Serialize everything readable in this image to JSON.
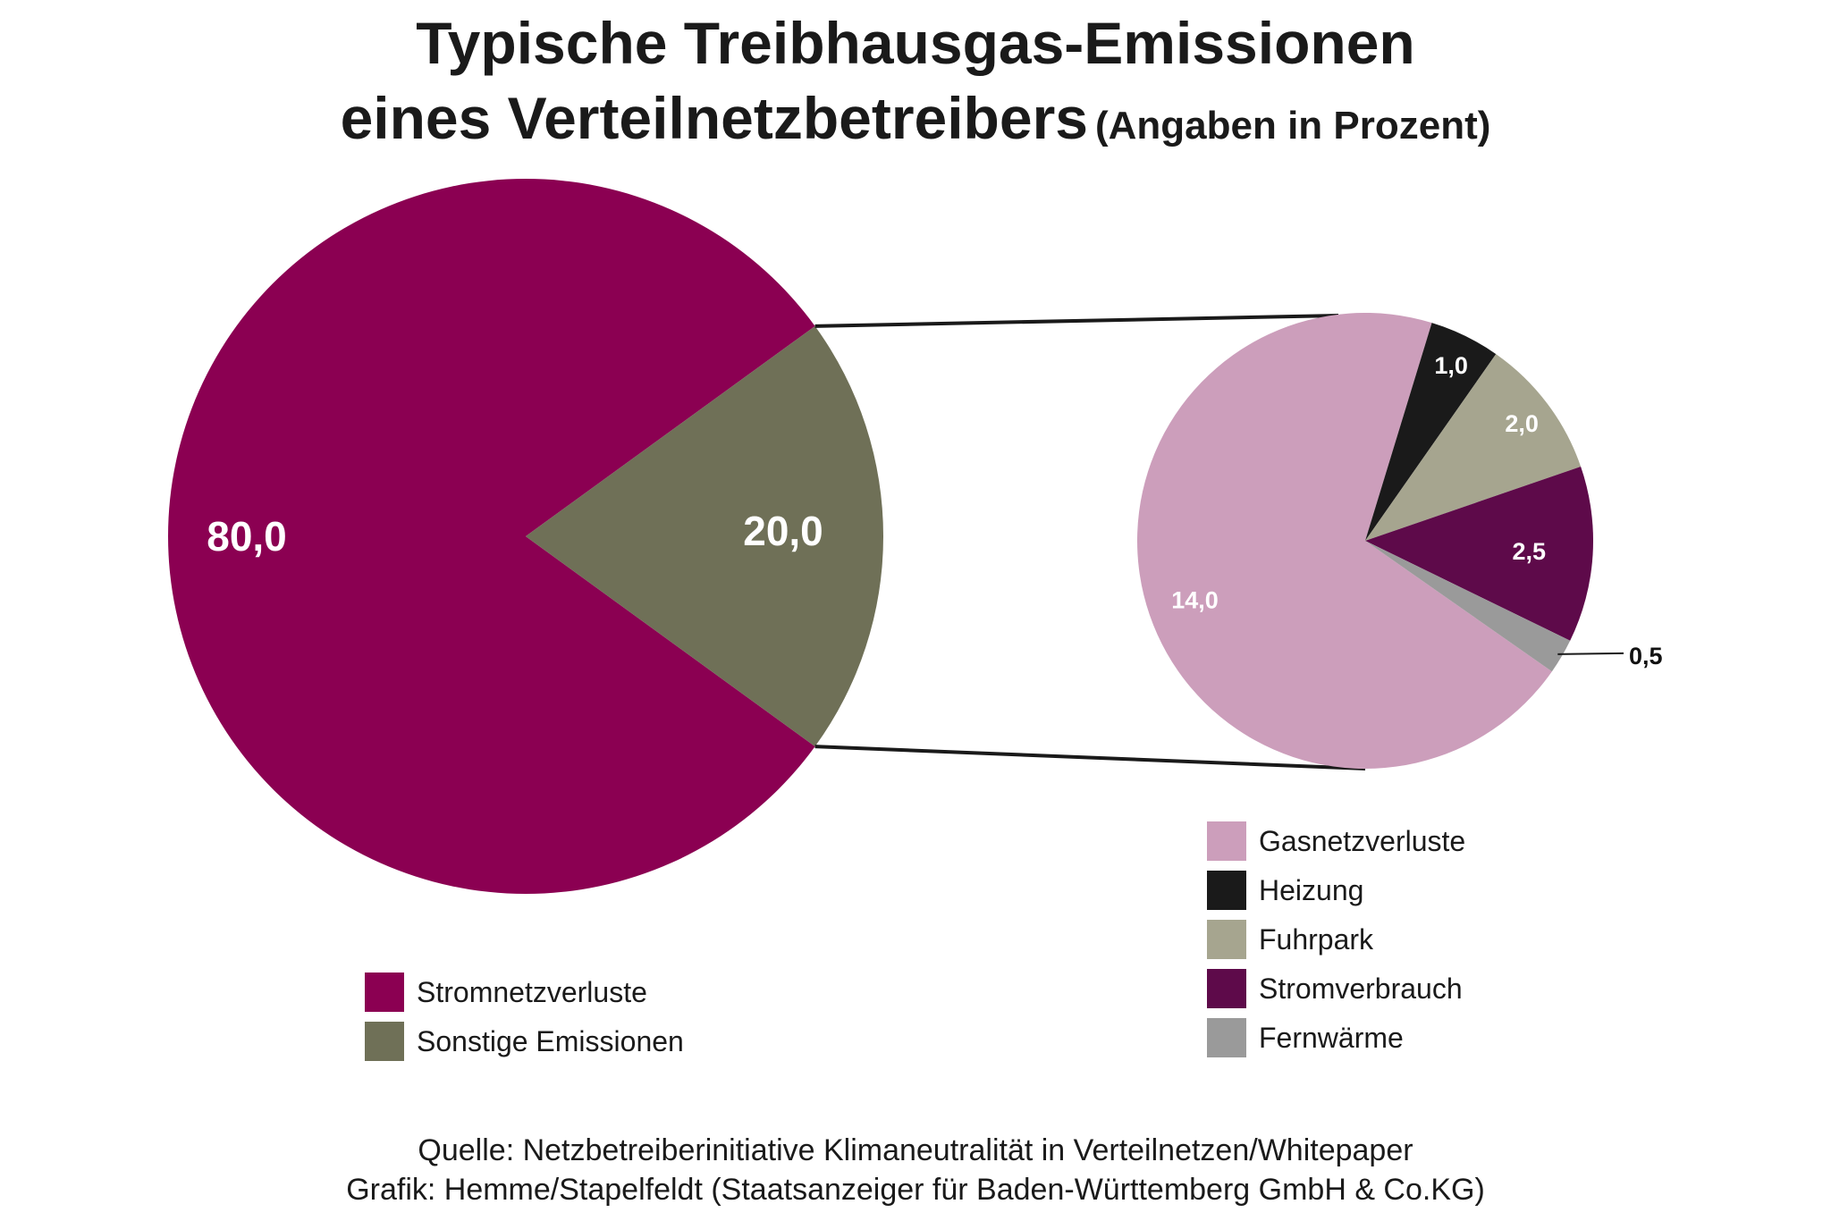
{
  "title_line1": "Typische Treibhausgas-Emissionen",
  "title_line2": "eines Verteilnetzbetreibers",
  "title_unit": "(Angaben in Prozent)",
  "chart_data": [
    {
      "type": "pie",
      "series": [
        {
          "name": "Stromnetzverluste",
          "value": 80.0,
          "label": "80,0",
          "color": "#8b0052"
        },
        {
          "name": "Sonstige Emissionen",
          "value": 20.0,
          "label": "20,0",
          "color": "#6f7057"
        }
      ]
    },
    {
      "type": "pie",
      "series": [
        {
          "name": "Gasnetzverluste",
          "value": 14.0,
          "label": "14,0",
          "color": "#cc9ebb"
        },
        {
          "name": "Heizung",
          "value": 1.0,
          "label": "1,0",
          "color": "#1a1a1a"
        },
        {
          "name": "Fuhrpark",
          "value": 2.0,
          "label": "2,0",
          "color": "#a6a58f"
        },
        {
          "name": "Stromverbrauch",
          "value": 2.5,
          "label": "2,5",
          "color": "#5e0a4a"
        },
        {
          "name": "Fernwärme",
          "value": 0.5,
          "label": "0,5",
          "color": "#9a9a9a"
        }
      ]
    }
  ],
  "legend_left": [
    {
      "label": "Stromnetzverluste",
      "color": "#8b0052"
    },
    {
      "label": "Sonstige Emissionen",
      "color": "#6f7057"
    }
  ],
  "legend_right": [
    {
      "label": "Gasnetzverluste",
      "color": "#cc9ebb"
    },
    {
      "label": "Heizung",
      "color": "#1a1a1a"
    },
    {
      "label": "Fuhrpark",
      "color": "#a6a58f"
    },
    {
      "label": "Stromverbrauch",
      "color": "#5e0a4a"
    },
    {
      "label": "Fernwärme",
      "color": "#9a9a9a"
    }
  ],
  "source_line": "Quelle: Netzbetreiberinitiative Klimaneutralität in Verteilnetzen/Whitepaper",
  "credit_line": "Grafik: Hemme/Stapelfeldt (Staatsanzeiger für Baden-Württemberg GmbH & Co.KG)"
}
